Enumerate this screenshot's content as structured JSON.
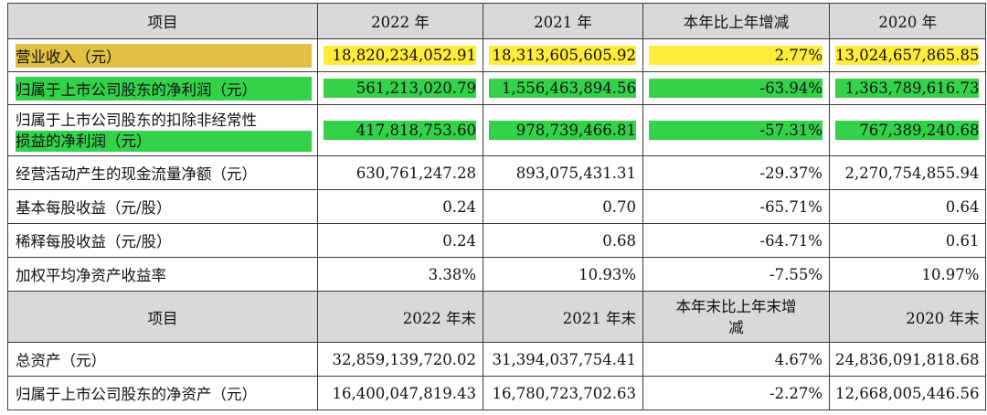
{
  "header1": [
    "项目",
    "2022 年",
    "2021 年",
    "本年比上年增减",
    "2020 年"
  ],
  "rows1": [
    {
      "label": "营业收入（元）",
      "v2022": "18,820,234,052.91",
      "v2021": "18,313,605,605.92",
      "change": "2.77%",
      "v2020": "13,024,657,865.85",
      "highlight": "yellow"
    },
    {
      "label": "归属于上市公司股东的净利润（元）",
      "v2022": "561,213,020.79",
      "v2021": "1,556,463,894.56",
      "change": "-63.94%",
      "v2020": "1,363,789,616.73",
      "highlight": "green"
    },
    {
      "label_line1": "归属于上市公司股东的扣除非经常性",
      "label_line2": "损益的净利润（元）",
      "v2022": "417,818,753.60",
      "v2021": "978,739,466.81",
      "change": "-57.31%",
      "v2020": "767,389,240.68",
      "highlight": "green"
    },
    {
      "label": "经营活动产生的现金流量净额（元）",
      "v2022": "630,761,247.28",
      "v2021": "893,075,431.31",
      "change": "-29.37%",
      "v2020": "2,270,754,855.94"
    },
    {
      "label": "基本每股收益（元/股）",
      "v2022": "0.24",
      "v2021": "0.70",
      "change": "-65.71%",
      "v2020": "0.64"
    },
    {
      "label": "稀释每股收益（元/股）",
      "v2022": "0.24",
      "v2021": "0.68",
      "change": "-64.71%",
      "v2020": "0.61"
    },
    {
      "label": "加权平均净资产收益率",
      "v2022": "3.38%",
      "v2021": "10.93%",
      "change": "-7.55%",
      "v2020": "10.97%"
    }
  ],
  "header2": {
    "item": "项目",
    "y2022": "2022 年末",
    "y2021": "2021 年末",
    "change_line1": "本年末比上年末增",
    "change_line2": "减",
    "y2020": "2020 年末"
  },
  "rows2": [
    {
      "label": "总资产（元）",
      "v2022": "32,859,139,720.02",
      "v2021": "31,394,037,754.41",
      "change": "4.67%",
      "v2020": "24,836,091,818.68"
    },
    {
      "label": "归属于上市公司股东的净资产（元）",
      "v2022": "16,400,047,819.43",
      "v2021": "16,780,723,702.63",
      "change": "-2.27%",
      "v2020": "12,668,005,446.56"
    }
  ],
  "colors": {
    "highlight_yellow": "#ffeb3b",
    "highlight_gold": "#e2c043",
    "highlight_green": "#33d24a",
    "header_bg": "#d9d9d9"
  }
}
